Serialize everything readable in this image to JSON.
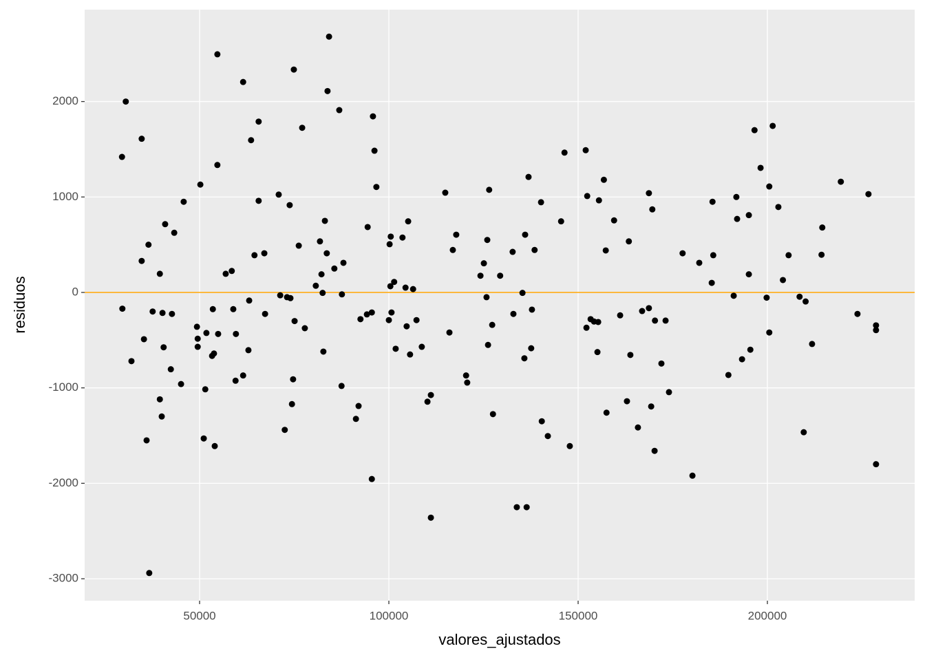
{
  "chart_data": {
    "type": "scatter",
    "xlabel": "valores_ajustados",
    "ylabel": "residuos",
    "color": "#000000",
    "reference_line": {
      "y": 0,
      "color": "#FFA500"
    },
    "xlim": [
      19636,
      238909
    ],
    "ylim": [
      -3230,
      2963
    ],
    "xticks": [
      50000,
      100000,
      150000,
      200000
    ],
    "yticks": [
      -3000,
      -2000,
      -1000,
      0,
      1000,
      2000
    ],
    "grid": true,
    "x": [
      29500,
      29600,
      30500,
      32000,
      34700,
      34700,
      35300,
      36000,
      36500,
      36700,
      37600,
      39500,
      39500,
      40000,
      40200,
      40500,
      40900,
      42400,
      42700,
      43300,
      45100,
      45800,
      49300,
      49500,
      49500,
      50200,
      51100,
      51500,
      51800,
      53300,
      53500,
      53800,
      54000,
      54700,
      54700,
      54900,
      56900,
      58500,
      58900,
      59500,
      59600,
      61500,
      61500,
      62900,
      63100,
      63600,
      64500,
      65600,
      65600,
      67100,
      67300,
      70900,
      71300,
      72500,
      73100,
      73800,
      74000,
      74400,
      74700,
      74900,
      75100,
      76200,
      77100,
      77800,
      80700,
      81800,
      82200,
      82500,
      82700,
      83100,
      83600,
      83800,
      84200,
      85600,
      86900,
      87500,
      87600,
      88000,
      91300,
      92000,
      92500,
      94200,
      94400,
      95500,
      95500,
      95800,
      96200,
      96700,
      100000,
      100200,
      100400,
      100500,
      100700,
      101400,
      101800,
      103600,
      104400,
      104700,
      105100,
      105600,
      106400,
      107300,
      108700,
      110200,
      111100,
      111100,
      114900,
      116000,
      116900,
      117800,
      120400,
      120700,
      124200,
      125100,
      125800,
      126000,
      126200,
      126500,
      127300,
      127500,
      129400,
      132700,
      132900,
      133800,
      135300,
      135800,
      136000,
      136400,
      136900,
      137600,
      137800,
      138500,
      140200,
      140400,
      142000,
      145500,
      146400,
      147800,
      152000,
      152200,
      152400,
      153300,
      154200,
      155100,
      155300,
      155500,
      156800,
      157300,
      157500,
      159500,
      161100,
      162900,
      163400,
      163800,
      165800,
      166900,
      168700,
      168700,
      169300,
      169600,
      170200,
      170300,
      172000,
      173100,
      174000,
      177600,
      180200,
      182000,
      185300,
      185500,
      185700,
      189700,
      191100,
      191800,
      192000,
      193300,
      195100,
      195100,
      195500,
      196600,
      198200,
      199800,
      200500,
      200500,
      201400,
      202900,
      204100,
      205600,
      208500,
      209600,
      210100,
      211800,
      214300,
      214500,
      219400,
      223800,
      226700,
      228700,
      228700,
      228700
    ],
    "values": [
      1420,
      -170,
      2000,
      -720,
      1610,
      330,
      -490,
      -1550,
      500,
      -2940,
      -200,
      195,
      -1120,
      -1300,
      -215,
      -575,
      715,
      -805,
      -225,
      625,
      -960,
      950,
      -360,
      -485,
      -570,
      1130,
      -1530,
      -1015,
      -425,
      -665,
      -175,
      -640,
      -1610,
      2495,
      1335,
      -435,
      195,
      225,
      -175,
      -925,
      -435,
      2205,
      -870,
      -605,
      -85,
      1595,
      390,
      1790,
      960,
      410,
      -225,
      1025,
      -30,
      -1440,
      -50,
      915,
      -60,
      -1170,
      -910,
      2335,
      -300,
      490,
      1725,
      -375,
      70,
      535,
      190,
      -5,
      -620,
      750,
      410,
      2110,
      2680,
      250,
      1910,
      -980,
      -20,
      310,
      -1325,
      -1190,
      -280,
      -230,
      685,
      -210,
      -1955,
      1845,
      1485,
      1105,
      -290,
      505,
      65,
      585,
      -210,
      110,
      -590,
      575,
      50,
      -355,
      745,
      -650,
      35,
      -290,
      -570,
      -1145,
      -1075,
      -2360,
      1045,
      -420,
      445,
      605,
      -870,
      -945,
      175,
      305,
      -50,
      550,
      -550,
      1075,
      -340,
      -1275,
      175,
      425,
      -225,
      -2250,
      -5,
      -690,
      605,
      -2250,
      1210,
      -585,
      -180,
      445,
      945,
      -1350,
      -1505,
      745,
      1465,
      -1610,
      1490,
      -370,
      1010,
      -280,
      -305,
      -625,
      -310,
      965,
      1180,
      440,
      -1260,
      755,
      -240,
      -1140,
      535,
      -655,
      -1415,
      -195,
      -165,
      1040,
      -1195,
      870,
      -1660,
      -295,
      -745,
      -295,
      -1045,
      410,
      -1920,
      310,
      100,
      950,
      390,
      -865,
      -35,
      1000,
      770,
      -700,
      810,
      190,
      -600,
      1700,
      1305,
      -55,
      1110,
      -420,
      1745,
      895,
      130,
      390,
      -45,
      -1465,
      -95,
      -540,
      395,
      680,
      1160,
      -225,
      1030,
      -345,
      -395,
      -1800
    ]
  }
}
